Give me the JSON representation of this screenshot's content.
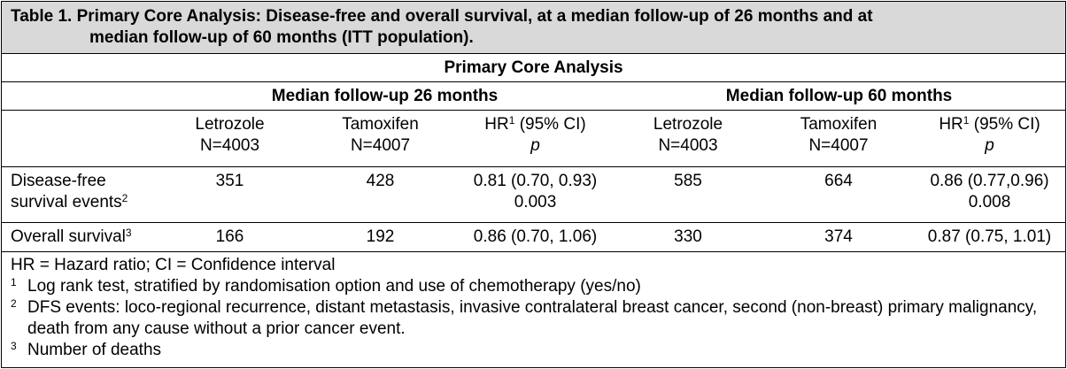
{
  "caption": {
    "line1": "Table 1. Primary Core Analysis: Disease-free and overall survival, at a median follow-up of 26 months and at",
    "line2": "median follow-up of 60 months (ITT population)."
  },
  "table": {
    "title": "Primary Core Analysis",
    "groups": [
      "Median follow-up 26 months",
      "Median follow-up 60 months"
    ],
    "columns": [
      {
        "line1": "Letrozole",
        "line2": "N=4003"
      },
      {
        "line1": "Tamoxifen",
        "line2": "N=4007"
      },
      {
        "line1": "HR",
        "sup": "1",
        "line1b": " (95% CI)",
        "line2": "p"
      },
      {
        "line1": "Letrozole",
        "line2": "N=4003"
      },
      {
        "line1": "Tamoxifen",
        "line2": "N=4007"
      },
      {
        "line1": "HR",
        "sup": "1",
        "line1b": " (95% CI)",
        "line2": "p"
      }
    ],
    "rows": [
      {
        "label_line1": "Disease-free",
        "label_line2": "survival events",
        "label_sup": "2",
        "let26": "351",
        "tam26": "428",
        "hr26": "0.81 (0.70, 0.93)",
        "p26": "0.003",
        "let60": "585",
        "tam60": "664",
        "hr60": "0.86 (0.77,0.96)",
        "p60": "0.008"
      },
      {
        "label_line1": "Overall survival",
        "label_sup": "3",
        "let26": "166",
        "tam26": "192",
        "hr26": "0.86 (0.70, 1.06)",
        "let60": "330",
        "tam60": "374",
        "hr60": "0.87 (0.75, 1.01)"
      }
    ]
  },
  "footnotes": {
    "abbrev": "HR = Hazard ratio; CI = Confidence interval",
    "items": [
      {
        "marker": "1",
        "text": "Log rank test, stratified by randomisation option and use of chemotherapy (yes/no)"
      },
      {
        "marker": "2",
        "text": "DFS events: loco-regional recurrence, distant metastasis, invasive contralateral breast cancer, second (non-breast) primary malignancy, death from any cause without a prior cancer event."
      },
      {
        "marker": "3",
        "text": "Number of deaths"
      }
    ]
  }
}
